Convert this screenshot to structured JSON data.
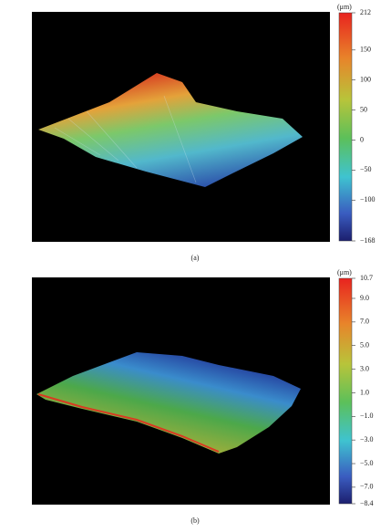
{
  "panels": [
    {
      "caption": "(a)",
      "colorbar": {
        "unit": "(μm)",
        "lim": [
          -168,
          212
        ],
        "ticks": [
          212,
          150,
          100,
          50,
          0,
          {
            "value": -50,
            "label": "−50"
          },
          {
            "value": -100,
            "label": "−100"
          },
          {
            "value": -168,
            "label": "−168"
          }
        ]
      }
    },
    {
      "caption": "(b)",
      "colorbar": {
        "unit": "(μm)",
        "lim": [
          -8.4,
          10.7
        ],
        "ticks": [
          10.7,
          {
            "value": 9,
            "label": "9.0"
          },
          {
            "value": 7,
            "label": "7.0"
          },
          {
            "value": 5,
            "label": "5.0"
          },
          {
            "value": 3,
            "label": "3.0"
          },
          {
            "value": 1,
            "label": "1.0"
          },
          {
            "value": -1,
            "label": "−1.0"
          },
          {
            "value": -3,
            "label": "−3.0"
          },
          {
            "value": -5,
            "label": "−5.0"
          },
          {
            "value": -7,
            "label": "−7.0"
          },
          {
            "value": -8.4,
            "label": "−8.4"
          }
        ]
      }
    }
  ]
}
